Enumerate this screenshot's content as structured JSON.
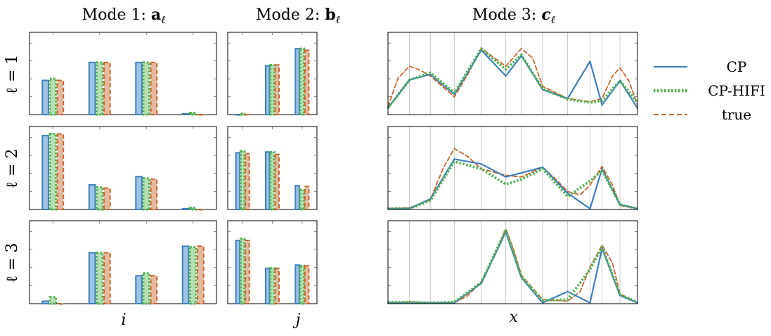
{
  "column_titles": [
    {
      "prefix": "Mode 1: ",
      "sym": "a",
      "sub": "ℓ"
    },
    {
      "prefix": "Mode 2: ",
      "sym": "b",
      "sub": "ℓ"
    },
    {
      "prefix": "Mode 3: ",
      "sym": "c",
      "sub": "ℓ"
    }
  ],
  "row_labels": [
    "ℓ = 1",
    "ℓ = 2",
    "ℓ = 3"
  ],
  "x_labels": [
    "i",
    "j",
    "x"
  ],
  "legend": [
    {
      "label": "CP",
      "color": "#3f7fbf",
      "style": "solid"
    },
    {
      "label": "CP-HIFI",
      "color": "#4cb04c",
      "style": "dotted"
    },
    {
      "label": "true",
      "color": "#c8652a",
      "style": "dashed"
    }
  ],
  "colors": {
    "cp": "#3f7fbf",
    "cphifi": "#4cb04c",
    "true": "#c8652a",
    "cp_fill": "#9ec3e3",
    "cphifi_fill": "#b6e0b3",
    "true_fill": "#e4b9a0"
  },
  "chart_data": [
    {
      "type": "bar",
      "panel": "mode1-l1",
      "categories": [
        1,
        2,
        3,
        4
      ],
      "ylim": [
        0,
        1
      ],
      "series": [
        {
          "name": "CP",
          "values": [
            0.42,
            0.64,
            0.64,
            0.01
          ]
        },
        {
          "name": "CP-HIFI",
          "values": [
            0.44,
            0.64,
            0.64,
            0.02
          ]
        },
        {
          "name": "true",
          "values": [
            0.42,
            0.64,
            0.64,
            0.0
          ]
        }
      ]
    },
    {
      "type": "bar",
      "panel": "mode2-l1",
      "categories": [
        1,
        2,
        3
      ],
      "ylim": [
        0,
        1
      ],
      "series": [
        {
          "name": "CP",
          "values": [
            0.0,
            0.6,
            0.81
          ]
        },
        {
          "name": "CP-HIFI",
          "values": [
            0.01,
            0.61,
            0.81
          ]
        },
        {
          "name": "true",
          "values": [
            0.0,
            0.61,
            0.79
          ]
        }
      ]
    },
    {
      "type": "line",
      "panel": "mode3-l1",
      "xlim": [
        0,
        1
      ],
      "ylim": [
        0,
        1
      ],
      "grid_x": [
        0.086,
        0.17,
        0.266,
        0.374,
        0.472,
        0.535,
        0.62,
        0.72,
        0.81,
        0.858,
        0.93
      ],
      "series": [
        {
          "name": "CP",
          "x": [
            0,
            0.086,
            0.17,
            0.266,
            0.374,
            0.472,
            0.535,
            0.62,
            0.72,
            0.81,
            0.858,
            0.93,
            1
          ],
          "y": [
            0.08,
            0.43,
            0.5,
            0.25,
            0.8,
            0.48,
            0.73,
            0.31,
            0.2,
            0.66,
            0.12,
            0.42,
            0.08
          ]
        },
        {
          "name": "CP-HIFI",
          "x": [
            0,
            0.086,
            0.17,
            0.266,
            0.374,
            0.472,
            0.535,
            0.62,
            0.72,
            0.81,
            0.858,
            0.93,
            1
          ],
          "y": [
            0.08,
            0.43,
            0.52,
            0.27,
            0.82,
            0.56,
            0.74,
            0.32,
            0.19,
            0.15,
            0.17,
            0.42,
            0.15
          ]
        },
        {
          "name": "true",
          "x": [
            0,
            0.04,
            0.086,
            0.13,
            0.17,
            0.266,
            0.32,
            0.374,
            0.472,
            0.535,
            0.58,
            0.62,
            0.72,
            0.81,
            0.858,
            0.9,
            0.93,
            0.965,
            1
          ],
          "y": [
            0.1,
            0.45,
            0.6,
            0.55,
            0.48,
            0.22,
            0.5,
            0.82,
            0.6,
            0.82,
            0.7,
            0.35,
            0.2,
            0.16,
            0.2,
            0.48,
            0.58,
            0.42,
            0.12
          ]
        }
      ]
    },
    {
      "type": "bar",
      "panel": "mode1-l2",
      "categories": [
        1,
        2,
        3,
        4
      ],
      "ylim": [
        0,
        1
      ],
      "series": [
        {
          "name": "CP",
          "values": [
            0.9,
            0.3,
            0.4,
            0.01
          ]
        },
        {
          "name": "CP-HIFI",
          "values": [
            0.92,
            0.27,
            0.38,
            0.02
          ]
        },
        {
          "name": "true",
          "values": [
            0.92,
            0.26,
            0.37,
            0.0
          ]
        }
      ]
    },
    {
      "type": "bar",
      "panel": "mode2-l2",
      "categories": [
        1,
        2,
        3
      ],
      "ylim": [
        0,
        1
      ],
      "series": [
        {
          "name": "CP",
          "values": [
            0.69,
            0.7,
            0.29
          ]
        },
        {
          "name": "CP-HIFI",
          "values": [
            0.71,
            0.7,
            0.24
          ]
        },
        {
          "name": "true",
          "values": [
            0.68,
            0.67,
            0.28
          ]
        }
      ]
    },
    {
      "type": "line",
      "panel": "mode3-l2",
      "xlim": [
        0,
        1
      ],
      "ylim": [
        0,
        1
      ],
      "grid_x": [
        0.086,
        0.17,
        0.266,
        0.374,
        0.472,
        0.535,
        0.62,
        0.72,
        0.81,
        0.858,
        0.93
      ],
      "series": [
        {
          "name": "CP",
          "x": [
            0,
            0.086,
            0.17,
            0.266,
            0.374,
            0.472,
            0.535,
            0.62,
            0.72,
            0.81,
            0.858,
            0.93,
            1
          ],
          "y": [
            0.01,
            0.01,
            0.13,
            0.62,
            0.56,
            0.4,
            0.45,
            0.52,
            0.2,
            0.01,
            0.5,
            0.06,
            0.01
          ]
        },
        {
          "name": "CP-HIFI",
          "x": [
            0,
            0.086,
            0.17,
            0.266,
            0.374,
            0.472,
            0.535,
            0.62,
            0.72,
            0.81,
            0.858,
            0.93,
            1
          ],
          "y": [
            0.01,
            0.01,
            0.11,
            0.59,
            0.5,
            0.31,
            0.37,
            0.5,
            0.16,
            0.35,
            0.48,
            0.06,
            0.01
          ]
        },
        {
          "name": "true",
          "x": [
            0,
            0.086,
            0.17,
            0.22,
            0.266,
            0.32,
            0.374,
            0.472,
            0.535,
            0.62,
            0.68,
            0.72,
            0.77,
            0.81,
            0.858,
            0.9,
            0.93,
            1
          ],
          "y": [
            0.01,
            0.02,
            0.12,
            0.5,
            0.75,
            0.65,
            0.5,
            0.42,
            0.4,
            0.52,
            0.35,
            0.22,
            0.18,
            0.3,
            0.53,
            0.3,
            0.05,
            0.01
          ]
        }
      ]
    },
    {
      "type": "bar",
      "panel": "mode1-l3",
      "categories": [
        1,
        2,
        3,
        4
      ],
      "ylim": [
        0,
        1
      ],
      "series": [
        {
          "name": "CP",
          "values": [
            0.03,
            0.62,
            0.34,
            0.7
          ]
        },
        {
          "name": "CP-HIFI",
          "values": [
            0.08,
            0.62,
            0.37,
            0.69
          ]
        },
        {
          "name": "true",
          "values": [
            0.0,
            0.62,
            0.34,
            0.7
          ]
        }
      ]
    },
    {
      "type": "bar",
      "panel": "mode2-l3",
      "categories": [
        1,
        2,
        3
      ],
      "ylim": [
        0,
        1
      ],
      "series": [
        {
          "name": "CP",
          "values": [
            0.77,
            0.43,
            0.47
          ]
        },
        {
          "name": "CP-HIFI",
          "values": [
            0.79,
            0.43,
            0.46
          ]
        },
        {
          "name": "true",
          "values": [
            0.77,
            0.43,
            0.46
          ]
        }
      ]
    },
    {
      "type": "line",
      "panel": "mode3-l3",
      "xlim": [
        0,
        1
      ],
      "ylim": [
        0,
        1
      ],
      "grid_x": [
        0.086,
        0.17,
        0.266,
        0.374,
        0.472,
        0.535,
        0.62,
        0.72,
        0.81,
        0.858,
        0.93
      ],
      "series": [
        {
          "name": "CP",
          "x": [
            0,
            0.086,
            0.17,
            0.266,
            0.374,
            0.472,
            0.535,
            0.62,
            0.72,
            0.81,
            0.858,
            0.93,
            1
          ],
          "y": [
            0.01,
            0.01,
            0.01,
            0.01,
            0.25,
            0.88,
            0.32,
            0.01,
            0.15,
            0.01,
            0.68,
            0.1,
            0.01
          ]
        },
        {
          "name": "CP-HIFI",
          "x": [
            0,
            0.086,
            0.17,
            0.266,
            0.374,
            0.472,
            0.535,
            0.62,
            0.72,
            0.81,
            0.858,
            0.93,
            1
          ],
          "y": [
            0.02,
            0.02,
            0.01,
            0.02,
            0.26,
            0.91,
            0.33,
            0.04,
            0.05,
            0.42,
            0.7,
            0.11,
            0.02
          ]
        },
        {
          "name": "true",
          "x": [
            0,
            0.086,
            0.17,
            0.266,
            0.32,
            0.374,
            0.43,
            0.472,
            0.5,
            0.535,
            0.62,
            0.72,
            0.77,
            0.81,
            0.858,
            0.9,
            0.93,
            1
          ],
          "y": [
            0.01,
            0.02,
            0.01,
            0.01,
            0.1,
            0.27,
            0.6,
            0.92,
            0.7,
            0.35,
            0.05,
            0.03,
            0.15,
            0.45,
            0.72,
            0.5,
            0.12,
            0.01
          ]
        }
      ]
    }
  ]
}
